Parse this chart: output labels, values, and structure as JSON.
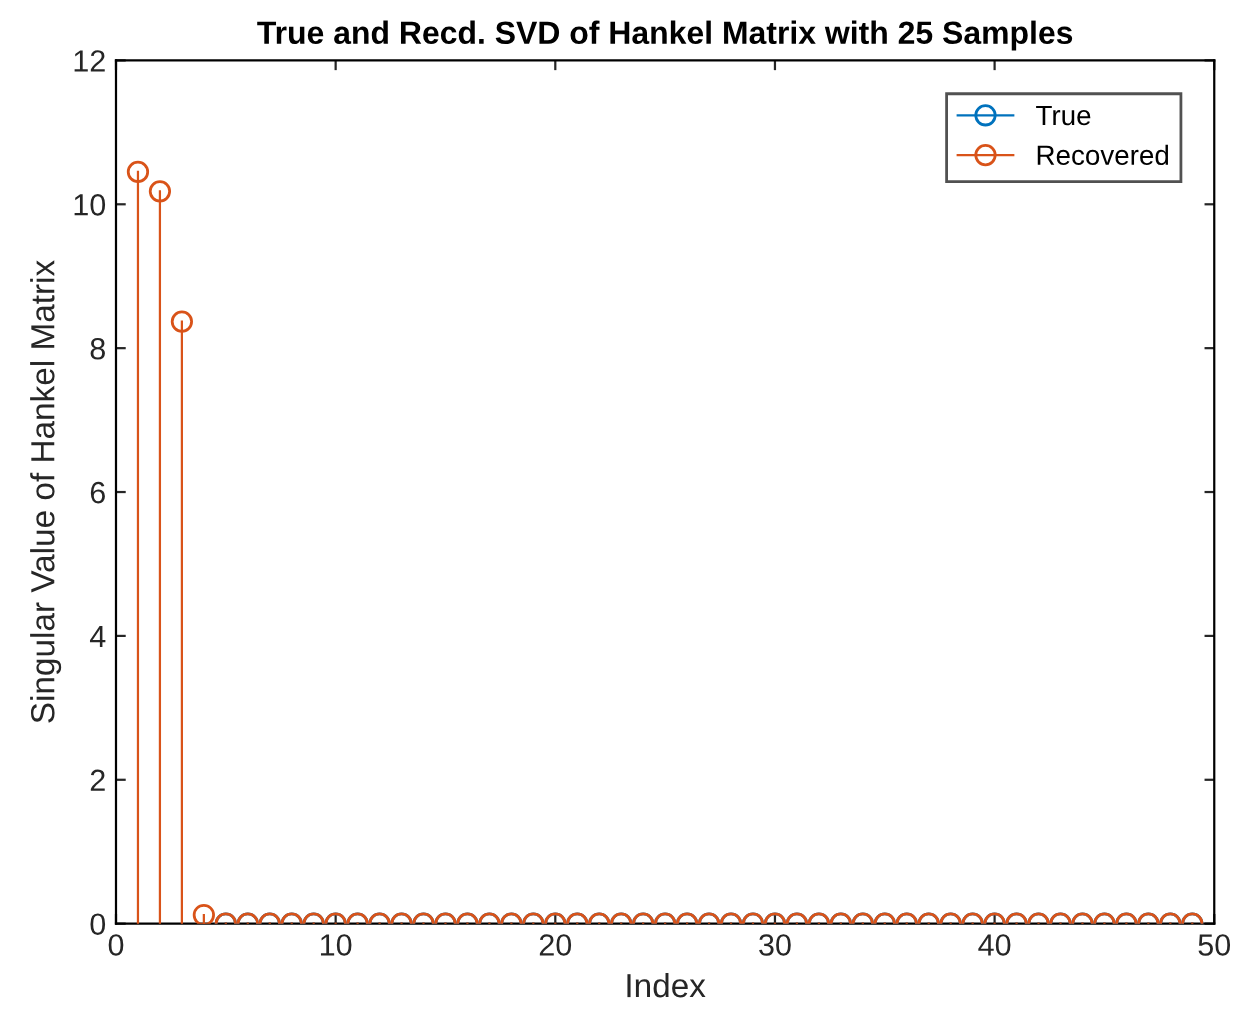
{
  "chart_data": {
    "type": "lollipop",
    "title": "True and Recd. SVD of Hankel Matrix with 25 Samples",
    "xlabel": "Index",
    "ylabel": "Singular Value of Hankel Matrix",
    "x": [
      1,
      2,
      3,
      4,
      5,
      6,
      7,
      8,
      9,
      10,
      11,
      12,
      13,
      14,
      15,
      16,
      17,
      18,
      19,
      20,
      21,
      22,
      23,
      24,
      25,
      26,
      27,
      28,
      29,
      30,
      31,
      32,
      33,
      34,
      35,
      36,
      37,
      38,
      39,
      40,
      41,
      42,
      43,
      44,
      45,
      46,
      47,
      48,
      49
    ],
    "series": [
      {
        "name": "True",
        "color": "#0072bd",
        "values": [
          null,
          null,
          null,
          null,
          0,
          0,
          0,
          0,
          0,
          0,
          0,
          0,
          0,
          0,
          0,
          0,
          0,
          0,
          0,
          0,
          0,
          0,
          0,
          0,
          0,
          0,
          0,
          0,
          0,
          0,
          0,
          0,
          0,
          0,
          0,
          0,
          0,
          0,
          0,
          0,
          0,
          0,
          0,
          0,
          0,
          0,
          0,
          0,
          0
        ]
      },
      {
        "name": "Recovered",
        "color": "#d95319",
        "values": [
          10.45,
          10.18,
          8.37,
          0.12,
          0,
          0,
          0,
          0,
          0,
          0,
          0,
          0,
          0,
          0,
          0,
          0,
          0,
          0,
          0,
          0,
          0,
          0,
          0,
          0,
          0,
          0,
          0,
          0,
          0,
          0,
          0,
          0,
          0,
          0,
          0,
          0,
          0,
          0,
          0,
          0,
          0,
          0,
          0,
          0,
          0,
          0,
          0,
          0,
          0
        ]
      }
    ],
    "xlim": [
      0,
      50
    ],
    "xticks": [
      0,
      10,
      20,
      30,
      40,
      50
    ],
    "ylim": [
      0,
      12
    ],
    "yticks": [
      0,
      2,
      4,
      6,
      8,
      10,
      12
    ],
    "marker": "circle",
    "grid": false,
    "legend": "top right"
  }
}
